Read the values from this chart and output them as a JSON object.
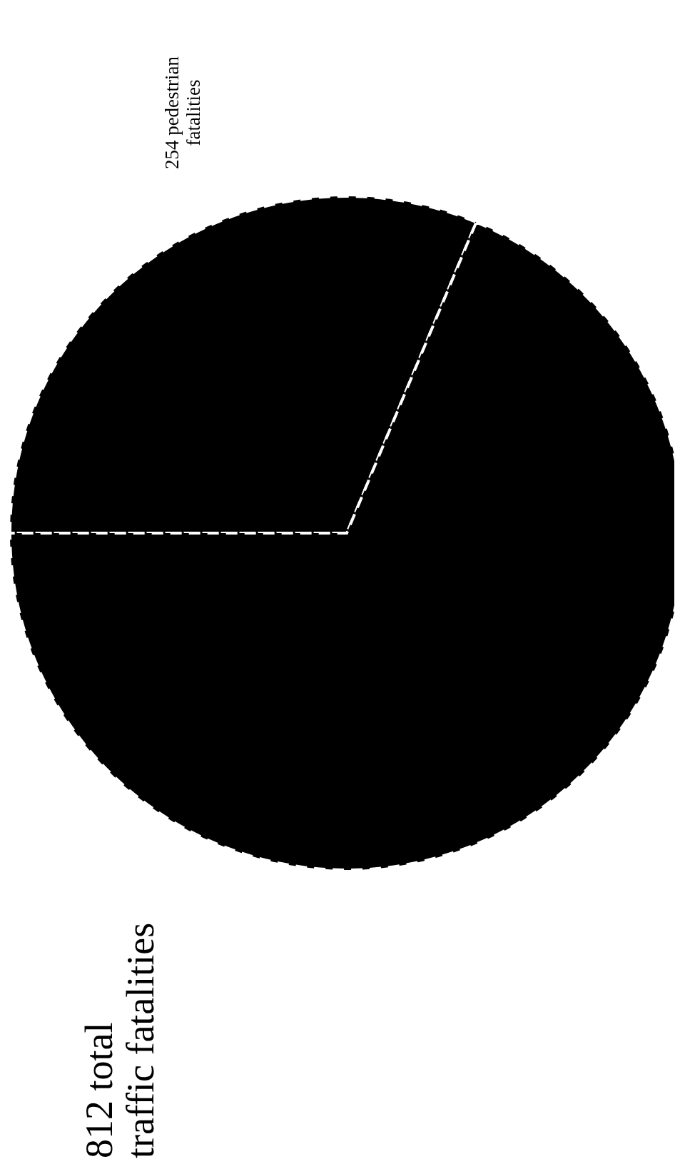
{
  "chart_data": {
    "type": "pie",
    "title": "812 total traffic fatalities",
    "categories": [
      "pedestrian fatalities",
      null
    ],
    "values": [
      254,
      558
    ],
    "value_labels": [
      "254",
      null
    ],
    "colors": [
      "#000000",
      "#000000"
    ]
  }
}
